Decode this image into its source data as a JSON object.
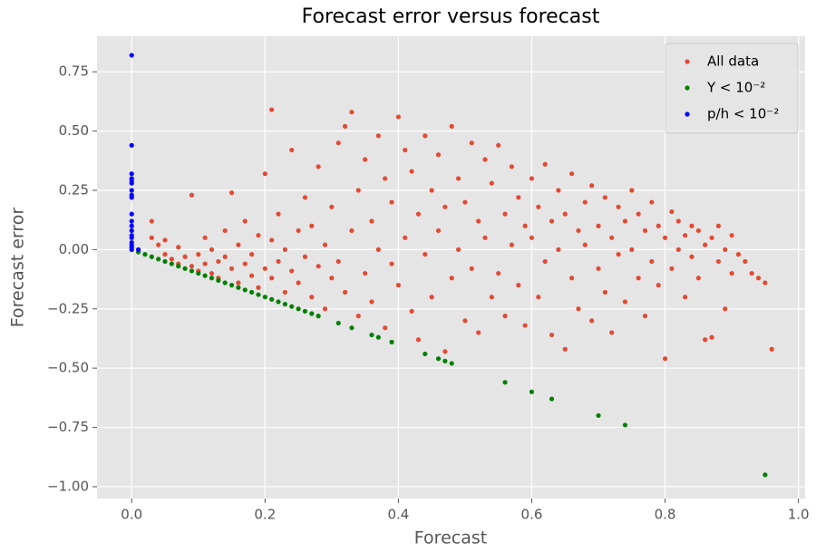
{
  "chart_data": {
    "type": "scatter",
    "title": "Forecast error versus forecast",
    "xlabel": "Forecast",
    "ylabel": "Forecast error",
    "xlim": [
      -0.052,
      1.01
    ],
    "ylim": [
      -1.05,
      0.9
    ],
    "xticks": [
      {
        "value": 0,
        "label": "0.0"
      },
      {
        "value": 0.2,
        "label": "0.2"
      },
      {
        "value": 0.4,
        "label": "0.4"
      },
      {
        "value": 0.6,
        "label": "0.6"
      },
      {
        "value": 0.8,
        "label": "0.8"
      },
      {
        "value": 1,
        "label": "1.0"
      }
    ],
    "yticks": [
      {
        "value": -1,
        "label": "−1.00"
      },
      {
        "value": -0.75,
        "label": "−0.75"
      },
      {
        "value": -0.5,
        "label": "−0.50"
      },
      {
        "value": -0.25,
        "label": "−0.25"
      },
      {
        "value": 0,
        "label": "0.00"
      },
      {
        "value": 0.25,
        "label": "0.25"
      },
      {
        "value": 0.5,
        "label": "0.50"
      },
      {
        "value": 0.75,
        "label": "0.75"
      }
    ],
    "grid": true,
    "legend": "upper right",
    "series": [
      {
        "name": "All data",
        "color": "#E24A33",
        "x": [
          0.03,
          0.03,
          0.04,
          0.05,
          0.05,
          0.06,
          0.07,
          0.07,
          0.08,
          0.09,
          0.09,
          0.1,
          0.1,
          0.11,
          0.11,
          0.12,
          0.12,
          0.13,
          0.13,
          0.14,
          0.14,
          0.15,
          0.15,
          0.16,
          0.16,
          0.17,
          0.17,
          0.18,
          0.18,
          0.19,
          0.19,
          0.2,
          0.2,
          0.21,
          0.21,
          0.21,
          0.22,
          0.22,
          0.23,
          0.23,
          0.24,
          0.24,
          0.25,
          0.25,
          0.26,
          0.26,
          0.27,
          0.27,
          0.28,
          0.28,
          0.29,
          0.29,
          0.3,
          0.3,
          0.31,
          0.31,
          0.32,
          0.32,
          0.33,
          0.33,
          0.34,
          0.34,
          0.35,
          0.35,
          0.36,
          0.36,
          0.37,
          0.37,
          0.38,
          0.38,
          0.39,
          0.39,
          0.4,
          0.4,
          0.41,
          0.41,
          0.42,
          0.42,
          0.43,
          0.43,
          0.44,
          0.44,
          0.45,
          0.45,
          0.46,
          0.46,
          0.47,
          0.47,
          0.48,
          0.48,
          0.49,
          0.49,
          0.5,
          0.5,
          0.51,
          0.51,
          0.52,
          0.52,
          0.53,
          0.53,
          0.54,
          0.54,
          0.55,
          0.55,
          0.56,
          0.56,
          0.57,
          0.57,
          0.58,
          0.58,
          0.59,
          0.59,
          0.6,
          0.6,
          0.61,
          0.61,
          0.62,
          0.62,
          0.63,
          0.63,
          0.64,
          0.64,
          0.65,
          0.65,
          0.66,
          0.66,
          0.67,
          0.67,
          0.68,
          0.68,
          0.69,
          0.69,
          0.7,
          0.7,
          0.71,
          0.71,
          0.72,
          0.72,
          0.73,
          0.73,
          0.74,
          0.74,
          0.75,
          0.75,
          0.76,
          0.76,
          0.77,
          0.77,
          0.78,
          0.78,
          0.79,
          0.79,
          0.8,
          0.8,
          0.81,
          0.81,
          0.82,
          0.82,
          0.83,
          0.83,
          0.84,
          0.84,
          0.85,
          0.85,
          0.86,
          0.86,
          0.87,
          0.87,
          0.88,
          0.88,
          0.89,
          0.89,
          0.9,
          0.9,
          0.91,
          0.92,
          0.93,
          0.94,
          0.95,
          0.96
        ],
        "values": [
          0.12,
          0.05,
          0.02,
          -0.02,
          0.04,
          -0.04,
          0.01,
          -0.06,
          -0.03,
          0.23,
          -0.07,
          -0.02,
          -0.09,
          0.05,
          -0.06,
          -0.1,
          0.0,
          -0.05,
          -0.12,
          0.08,
          -0.03,
          -0.08,
          0.24,
          -0.14,
          0.02,
          -0.06,
          0.12,
          -0.11,
          -0.02,
          0.06,
          -0.16,
          -0.08,
          0.32,
          0.59,
          -0.12,
          0.04,
          -0.05,
          0.15,
          -0.18,
          0.0,
          0.42,
          -0.09,
          0.08,
          -0.14,
          -0.03,
          0.22,
          -0.2,
          0.1,
          -0.07,
          0.35,
          -0.25,
          0.02,
          0.18,
          -0.12,
          0.45,
          -0.05,
          0.52,
          -0.18,
          0.58,
          0.08,
          -0.28,
          0.25,
          0.38,
          -0.1,
          0.12,
          -0.22,
          0.48,
          0.0,
          -0.33,
          0.3,
          0.2,
          -0.06,
          0.56,
          -0.15,
          0.42,
          0.05,
          -0.26,
          0.33,
          0.15,
          -0.38,
          0.48,
          -0.02,
          0.25,
          -0.2,
          0.4,
          0.08,
          -0.43,
          0.18,
          0.52,
          -0.12,
          0.3,
          0.0,
          -0.3,
          0.2,
          0.45,
          -0.08,
          0.12,
          -0.35,
          0.38,
          0.05,
          -0.2,
          0.28,
          0.44,
          -0.1,
          0.15,
          -0.28,
          0.35,
          0.02,
          -0.15,
          0.22,
          0.1,
          -0.32,
          0.3,
          0.05,
          -0.2,
          0.18,
          0.36,
          -0.05,
          0.12,
          -0.36,
          0.25,
          0.0,
          -0.42,
          0.15,
          0.32,
          -0.12,
          0.08,
          -0.25,
          0.2,
          0.02,
          -0.3,
          0.27,
          0.1,
          -0.08,
          0.22,
          -0.18,
          0.05,
          -0.35,
          0.18,
          -0.02,
          0.12,
          -0.22,
          0.25,
          0.0,
          -0.12,
          0.15,
          0.08,
          -0.28,
          0.2,
          -0.05,
          0.1,
          -0.15,
          -0.46,
          0.05,
          0.16,
          -0.08,
          0.0,
          0.12,
          -0.2,
          0.06,
          0.1,
          -0.03,
          -0.12,
          0.08,
          0.02,
          -0.38,
          0.05,
          -0.37,
          -0.05,
          0.1,
          -0.25,
          0.0,
          -0.1,
          0.06,
          -0.02,
          -0.05,
          -0.1,
          -0.12,
          -0.14,
          -0.42
        ]
      },
      {
        "name": "Y < 10⁻²",
        "color": "#008000",
        "x": [
          0.01,
          0.02,
          0.03,
          0.04,
          0.05,
          0.06,
          0.07,
          0.08,
          0.09,
          0.1,
          0.11,
          0.12,
          0.13,
          0.14,
          0.15,
          0.16,
          0.17,
          0.18,
          0.19,
          0.2,
          0.21,
          0.22,
          0.23,
          0.24,
          0.25,
          0.26,
          0.27,
          0.28,
          0.31,
          0.33,
          0.36,
          0.37,
          0.39,
          0.44,
          0.46,
          0.47,
          0.48,
          0.56,
          0.6,
          0.63,
          0.7,
          0.74,
          0.95
        ],
        "values": [
          -0.01,
          -0.02,
          -0.03,
          -0.04,
          -0.05,
          -0.06,
          -0.07,
          -0.08,
          -0.09,
          -0.1,
          -0.11,
          -0.12,
          -0.13,
          -0.14,
          -0.15,
          -0.16,
          -0.17,
          -0.18,
          -0.19,
          -0.2,
          -0.21,
          -0.22,
          -0.23,
          -0.24,
          -0.25,
          -0.26,
          -0.27,
          -0.28,
          -0.31,
          -0.33,
          -0.36,
          -0.37,
          -0.39,
          -0.44,
          -0.46,
          -0.47,
          -0.48,
          -0.56,
          -0.6,
          -0.63,
          -0.7,
          -0.74,
          -0.95
        ]
      },
      {
        "name": "p/h < 10⁻²",
        "color": "#0000FF",
        "x": [
          0,
          0,
          0,
          0,
          0,
          0,
          0,
          0,
          0,
          0,
          0,
          0,
          0,
          0,
          0,
          0,
          0,
          0,
          0,
          0.01
        ],
        "values": [
          0.82,
          0.44,
          0.32,
          0.3,
          0.29,
          0.28,
          0.25,
          0.23,
          0.22,
          0.15,
          0.12,
          0.1,
          0.08,
          0.06,
          0.05,
          0.03,
          0.02,
          0.01,
          0.0,
          0.0
        ]
      }
    ]
  }
}
